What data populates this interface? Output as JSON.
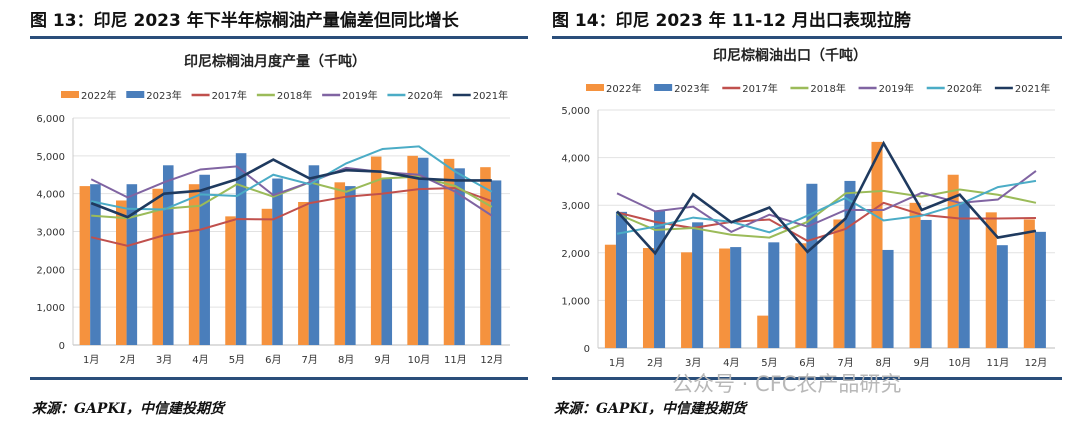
{
  "figures": [
    {
      "caption": "图 13：印尼 2023 年下半年棕榈油产量偏差但同比增长",
      "source": "来源：GAPKI，中信建投期货"
    },
    {
      "caption": "图 14：印尼 2023 年 11-12 月出口表现拉胯",
      "source": "来源：GAPKI，中信建投期货"
    }
  ],
  "watermark": "公众号 · CFC农产品研究",
  "colors": {
    "2022年": "#f5923e",
    "2023年": "#4a7ebb",
    "2017年": "#c0504d",
    "2018年": "#9bbb59",
    "2019年": "#8064a2",
    "2020年": "#4bacc6",
    "2021年": "#1f3a5f"
  },
  "chart_data": [
    {
      "type": "bar+line",
      "title": "印尼棕榈油月度产量（千吨）",
      "categories": [
        "1月",
        "2月",
        "3月",
        "4月",
        "5月",
        "6月",
        "7月",
        "8月",
        "9月",
        "10月",
        "11月",
        "12月"
      ],
      "ylim": [
        0,
        6000
      ],
      "yticks": [
        "0",
        "1,000",
        "2,000",
        "3,000",
        "4,000",
        "5,000",
        "6,000"
      ],
      "grid": true,
      "legend": "top",
      "bars": [
        {
          "name": "2022年",
          "values": [
            4200,
            3820,
            4130,
            4250,
            3400,
            3600,
            3780,
            4300,
            4980,
            5000,
            4920,
            4700
          ]
        },
        {
          "name": "2023年",
          "values": [
            4250,
            4250,
            4750,
            4500,
            5070,
            4400,
            4750,
            4200,
            4400,
            4950,
            4670,
            4350
          ]
        }
      ],
      "lines": [
        {
          "name": "2017年",
          "values": [
            2850,
            2620,
            2900,
            3050,
            3330,
            3320,
            3750,
            3920,
            4000,
            4120,
            4150,
            3800
          ]
        },
        {
          "name": "2018年",
          "values": [
            3420,
            3350,
            3600,
            3680,
            4250,
            3920,
            4300,
            4050,
            4400,
            4450,
            4200,
            3650
          ]
        },
        {
          "name": "2019年",
          "values": [
            4380,
            3900,
            4300,
            4640,
            4720,
            3960,
            4300,
            4680,
            4570,
            4500,
            4050,
            3420
          ]
        },
        {
          "name": "2020年",
          "values": [
            3800,
            3600,
            3580,
            3980,
            3940,
            4500,
            4250,
            4800,
            5180,
            5250,
            4580,
            4050
          ]
        },
        {
          "name": "2021年",
          "values": [
            3750,
            3380,
            4000,
            4080,
            4380,
            4900,
            4400,
            4620,
            4580,
            4400,
            4350,
            4350
          ]
        }
      ]
    },
    {
      "type": "bar+line",
      "title": "印尼棕榈油出口（千吨）",
      "categories": [
        "1月",
        "2月",
        "3月",
        "4月",
        "5月",
        "6月",
        "7月",
        "8月",
        "9月",
        "10月",
        "11月",
        "12月"
      ],
      "ylim": [
        0,
        5000
      ],
      "yticks": [
        "0",
        "1,000",
        "2,000",
        "3,000",
        "4,000",
        "5,000"
      ],
      "grid": true,
      "legend": "top",
      "bars": [
        {
          "name": "2022年",
          "values": [
            2170,
            2100,
            2010,
            2090,
            680,
            2200,
            2700,
            4330,
            3050,
            3640,
            2850,
            2700
          ]
        },
        {
          "name": "2023年",
          "values": [
            2860,
            2880,
            2640,
            2120,
            2220,
            3450,
            3510,
            2060,
            2690,
            3050,
            2160,
            2440
          ]
        }
      ],
      "lines": [
        {
          "name": "2017年",
          "values": [
            2850,
            2650,
            2520,
            2650,
            2700,
            2250,
            2500,
            3050,
            2800,
            2720,
            2720,
            2730
          ]
        },
        {
          "name": "2018年",
          "values": [
            2820,
            2480,
            2520,
            2380,
            2320,
            2650,
            3250,
            3300,
            3180,
            3330,
            3220,
            3050
          ]
        },
        {
          "name": "2019年",
          "values": [
            3250,
            2870,
            2970,
            2440,
            2800,
            2550,
            2900,
            2900,
            3260,
            3050,
            3120,
            3720
          ]
        },
        {
          "name": "2020年",
          "values": [
            2400,
            2550,
            2740,
            2650,
            2430,
            2780,
            3150,
            2680,
            2780,
            3020,
            3380,
            3510
          ]
        },
        {
          "name": "2021年",
          "values": [
            2870,
            1990,
            3230,
            2640,
            2950,
            2020,
            2720,
            4300,
            2900,
            3220,
            2320,
            2460
          ]
        }
      ]
    }
  ]
}
